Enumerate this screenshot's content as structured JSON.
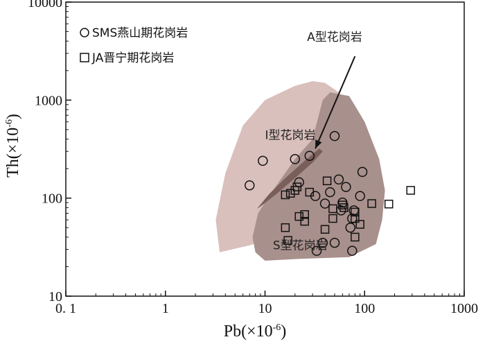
{
  "chart_data": {
    "type": "scatter",
    "title": "",
    "xlabel": "Pb(×10",
    "ylabel": "Th(×10",
    "unit_exponent": "-6",
    "unit_close": ")",
    "xscale": "log",
    "yscale": "log",
    "xlim": [
      0.1,
      1000
    ],
    "ylim": [
      10,
      10000
    ],
    "x_ticks": [
      {
        "value": 0.1,
        "label": "0. 1"
      },
      {
        "value": 1,
        "label": "1"
      },
      {
        "value": 10,
        "label": "10"
      },
      {
        "value": 100,
        "label": "100"
      },
      {
        "value": 1000,
        "label": "1000"
      }
    ],
    "y_ticks": [
      {
        "value": 10,
        "label": "10"
      },
      {
        "value": 100,
        "label": "100"
      },
      {
        "value": 1000,
        "label": "1000"
      },
      {
        "value": 10000,
        "label": "10000"
      }
    ],
    "regions": [
      {
        "name": "I型花岗岩",
        "color": "#d9c0bc",
        "points": [
          [
            3.5,
            28
          ],
          [
            7,
            33
          ],
          [
            11,
            38
          ],
          [
            15,
            45
          ],
          [
            17,
            60
          ],
          [
            20,
            90
          ],
          [
            25,
            130
          ],
          [
            32,
            200
          ],
          [
            45,
            350
          ],
          [
            60,
            700
          ],
          [
            55,
            1200
          ],
          [
            40,
            1500
          ],
          [
            30,
            1560
          ],
          [
            20,
            1400
          ],
          [
            10,
            1000
          ],
          [
            6,
            550
          ],
          [
            4,
            180
          ],
          [
            3.2,
            60
          ]
        ]
      },
      {
        "name": "S型花岗岩",
        "color": "#a8908c",
        "points": [
          [
            10,
            23
          ],
          [
            22,
            24
          ],
          [
            70,
            25
          ],
          [
            130,
            34
          ],
          [
            150,
            60
          ],
          [
            160,
            120
          ],
          [
            140,
            250
          ],
          [
            100,
            600
          ],
          [
            70,
            1100
          ],
          [
            45,
            1200
          ],
          [
            38,
            1000
          ],
          [
            30,
            400
          ],
          [
            20,
            250
          ],
          [
            12,
            120
          ],
          [
            8.5,
            70
          ],
          [
            7.5,
            40
          ],
          [
            8,
            28
          ]
        ]
      },
      {
        "name": "A型花岗岩",
        "color": "#7a5e5a",
        "points": [
          [
            8.3,
            78
          ],
          [
            11,
            110
          ],
          [
            16,
            160
          ],
          [
            25,
            240
          ],
          [
            35,
            320
          ],
          [
            38,
            300
          ],
          [
            30,
            230
          ],
          [
            20,
            160
          ],
          [
            13,
            110
          ],
          [
            9,
            82
          ]
        ]
      }
    ],
    "region_labels": [
      {
        "text": "I型花岗岩",
        "x": 10,
        "y": 400
      },
      {
        "text": "S型花岗岩",
        "x": 12,
        "y": 30
      },
      {
        "text": "A型花岗岩",
        "x": 50,
        "y": 4000
      }
    ],
    "arrow": {
      "from": [
        80,
        2800
      ],
      "to": [
        32,
        320
      ]
    },
    "series": [
      {
        "name": "SMS燕山期花岗岩",
        "marker": "circle",
        "points": [
          [
            7,
            135
          ],
          [
            9.5,
            240
          ],
          [
            20,
            250
          ],
          [
            28,
            270
          ],
          [
            50,
            430
          ],
          [
            22,
            145
          ],
          [
            32,
            105
          ],
          [
            40,
            88
          ],
          [
            45,
            115
          ],
          [
            55,
            155
          ],
          [
            60,
            90
          ],
          [
            65,
            130
          ],
          [
            58,
            75
          ],
          [
            78,
            75
          ],
          [
            95,
            185
          ],
          [
            90,
            105
          ],
          [
            72,
            50
          ],
          [
            75,
            62
          ],
          [
            38,
            35
          ],
          [
            50,
            35
          ],
          [
            33,
            29
          ],
          [
            75,
            29
          ]
        ]
      },
      {
        "name": "JA晋宁期花岗岩",
        "marker": "square",
        "points": [
          [
            20,
            120
          ],
          [
            18,
            112
          ],
          [
            16,
            108
          ],
          [
            21,
            130
          ],
          [
            28,
            115
          ],
          [
            42,
            150
          ],
          [
            22,
            65
          ],
          [
            25,
            68
          ],
          [
            25,
            58
          ],
          [
            16,
            50
          ],
          [
            17,
            37
          ],
          [
            40,
            48
          ],
          [
            48,
            62
          ],
          [
            48,
            78
          ],
          [
            60,
            85
          ],
          [
            62,
            80
          ],
          [
            80,
            72
          ],
          [
            80,
            62
          ],
          [
            90,
            54
          ],
          [
            80,
            40
          ],
          [
            118,
            88
          ],
          [
            175,
            87
          ],
          [
            290,
            120
          ]
        ]
      }
    ],
    "legend": [
      "SMS燕山期花岗岩",
      "JA晋宁期花岗岩"
    ],
    "legend_position": "top-left"
  }
}
